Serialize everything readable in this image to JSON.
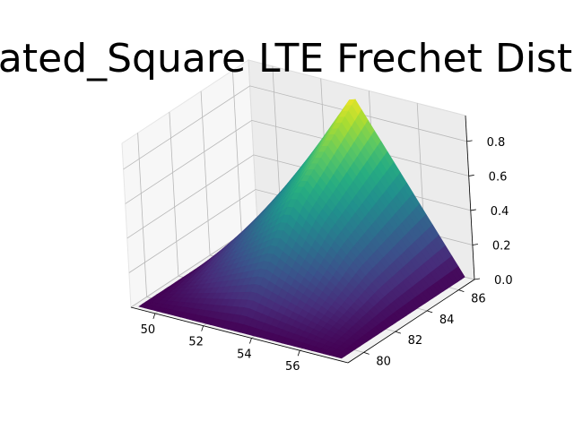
{
  "chart_data": {
    "type": "surface",
    "title": "ated_Square LTE Frechet Dist",
    "xlabel": "",
    "ylabel": "",
    "zlabel": "",
    "x_ticks": [
      "50",
      "52",
      "54",
      "56"
    ],
    "y_ticks": [
      "80",
      "82",
      "84",
      "86"
    ],
    "z_ticks": [
      "0.0",
      "0.2",
      "0.4",
      "0.6",
      "0.8"
    ],
    "xlim": [
      49,
      58
    ],
    "ylim": [
      79,
      87
    ],
    "zlim": [
      0,
      0.95
    ],
    "grid": true,
    "colormap": "viridis",
    "surface_x": [
      49.2,
      53.3,
      57.6
    ],
    "surface_y": [
      79.2,
      83.2,
      87.0
    ],
    "surface_z": [
      [
        0.0,
        0.0,
        0.0
      ],
      [
        0.0,
        0.56,
        0.0
      ],
      [
        0.0,
        0.9,
        0.0
      ]
    ]
  }
}
